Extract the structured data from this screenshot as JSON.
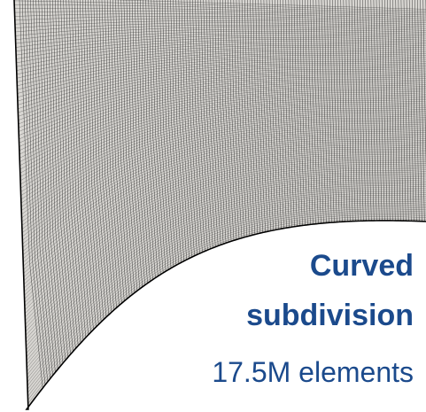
{
  "figure": {
    "caption_line1": "Curved",
    "caption_line2": "subdivision",
    "caption_line3": "17.5M elements",
    "mesh_label_icon": "curved-mesh-icon"
  },
  "colors": {
    "caption_bold": "#1b4a8c",
    "caption_regular": "#1b4a8c",
    "mesh_fill": "#d8d6d2",
    "mesh_line": "#2a2a2a",
    "mesh_boundary": "#000000",
    "background": "#ffffff"
  }
}
